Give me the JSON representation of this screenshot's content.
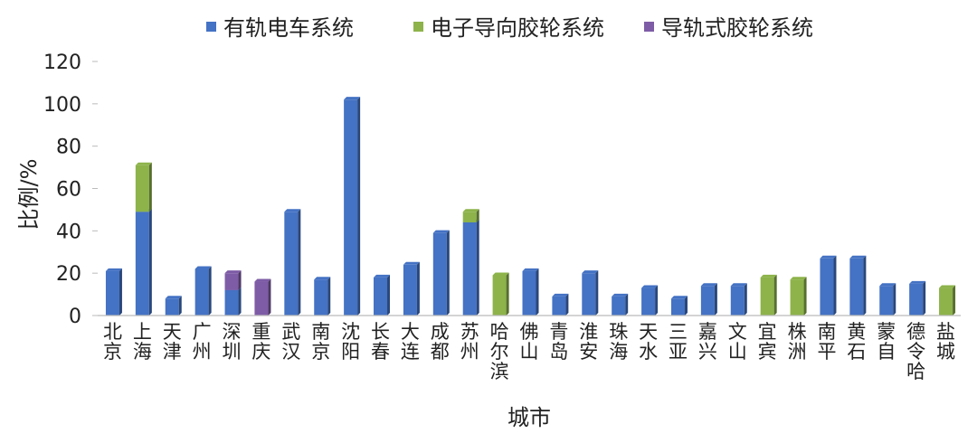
{
  "chart_data": {
    "type": "bar",
    "stacked": true,
    "title": "",
    "xlabel": "城市",
    "ylabel": "比例/%",
    "ylim": [
      0,
      120
    ],
    "yticks": [
      0,
      20,
      40,
      60,
      80,
      100,
      120
    ],
    "grid": false,
    "legend_position": "top",
    "categories": [
      "北京",
      "上海",
      "天津",
      "广州",
      "深圳",
      "重庆",
      "武汉",
      "南京",
      "沈阳",
      "长春",
      "大连",
      "成都",
      "苏州",
      "哈尔滨",
      "佛山",
      "青岛",
      "淮安",
      "珠海",
      "天水",
      "三亚",
      "嘉兴",
      "文山",
      "宜宾",
      "株洲",
      "南平",
      "黄石",
      "蒙自",
      "德令哈",
      "盐城"
    ],
    "series": [
      {
        "name": "有轨电车系统",
        "color": "#4472c4",
        "values": [
          21,
          49,
          8,
          22,
          12,
          0,
          49,
          17,
          102,
          18,
          24,
          39,
          44,
          0,
          21,
          9,
          20,
          9,
          13,
          8,
          14,
          14,
          0,
          0,
          27,
          27,
          14,
          15,
          0
        ]
      },
      {
        "name": "电子导向胶轮系统",
        "color": "#8db34a",
        "values": [
          0,
          22,
          0,
          0,
          0,
          0,
          0,
          0,
          0,
          0,
          0,
          0,
          5,
          19,
          0,
          0,
          0,
          0,
          0,
          0,
          0,
          0,
          18,
          17,
          0,
          0,
          0,
          0,
          13
        ]
      },
      {
        "name": "导轨式胶轮系统",
        "color": "#7e5ca6",
        "values": [
          0,
          0,
          0,
          0,
          8,
          16,
          0,
          0,
          0,
          0,
          0,
          0,
          0,
          0,
          0,
          0,
          0,
          0,
          0,
          0,
          0,
          0,
          0,
          0,
          0,
          0,
          0,
          0,
          0
        ]
      }
    ]
  }
}
